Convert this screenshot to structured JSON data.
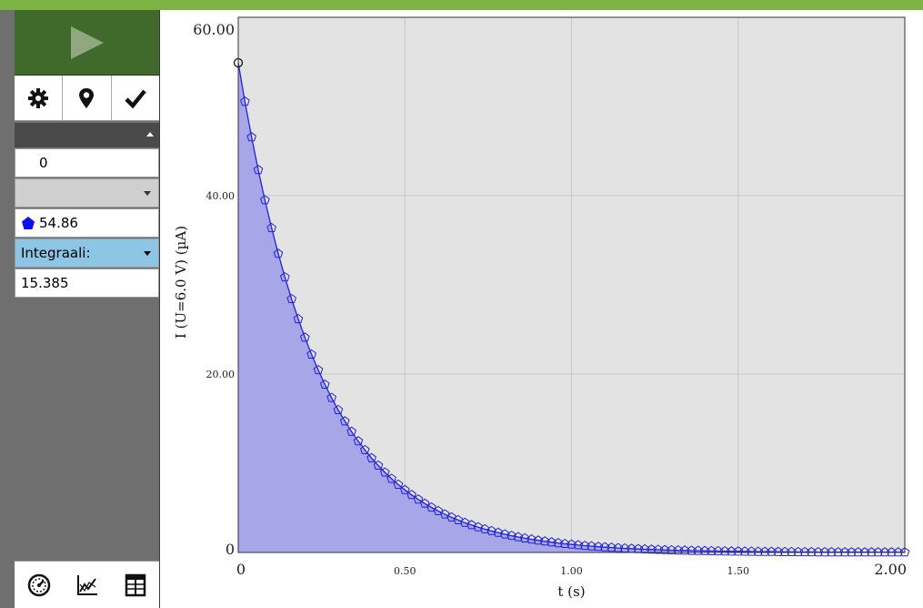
{
  "sidebar": {
    "buttons": {
      "play": "play-icon",
      "settings": "gear-icon",
      "marker": "map-pin-icon",
      "confirm": "checkmark-icon"
    },
    "panel1_value": "0",
    "panel2_value": "54.86",
    "panel3_label": "Integraali:",
    "panel3_value": "15.385",
    "bottom_buttons": [
      "meter-icon",
      "graph-icon",
      "table-icon"
    ]
  },
  "colors": {
    "accent_green": "#7cb342",
    "play_bg": "#3f6a2c",
    "series": "#2222dd",
    "fill": "#a6a6e8",
    "plot_bg": "#e3e3e3",
    "header_blue": "#8dc6e4"
  },
  "chart_data": {
    "type": "line",
    "xlabel": "t (s)",
    "ylabel": "I (U=6.0 V) (µA)",
    "xlim": [
      0,
      2.0
    ],
    "ylim": [
      0,
      60
    ],
    "x_ticks": [
      "0",
      "0.50",
      "1.00",
      "1.50",
      "2.00"
    ],
    "y_ticks": [
      "0",
      "20.00",
      "40.00",
      "60.00"
    ],
    "grid": true,
    "series": [
      {
        "x": [
          0.0,
          0.02,
          0.04,
          0.06,
          0.08,
          0.1,
          0.12,
          0.14,
          0.16,
          0.18,
          0.2,
          0.22,
          0.24,
          0.26,
          0.28,
          0.3,
          0.32,
          0.34,
          0.36,
          0.38,
          0.4,
          0.42,
          0.44,
          0.46,
          0.48,
          0.5,
          0.52,
          0.54,
          0.56,
          0.58,
          0.6,
          0.62,
          0.64,
          0.66,
          0.68,
          0.7,
          0.72,
          0.74,
          0.76,
          0.78,
          0.8,
          0.82,
          0.84,
          0.86,
          0.88,
          0.9,
          0.92,
          0.94,
          0.96,
          0.98,
          1.0,
          1.02,
          1.04,
          1.06,
          1.08,
          1.1,
          1.12,
          1.14,
          1.16,
          1.18,
          1.2,
          1.22,
          1.24,
          1.26,
          1.28,
          1.3,
          1.32,
          1.34,
          1.36,
          1.38,
          1.4,
          1.42,
          1.44,
          1.46,
          1.48,
          1.5,
          1.52,
          1.54,
          1.56,
          1.58,
          1.6,
          1.62,
          1.64,
          1.66,
          1.68,
          1.7,
          1.72,
          1.74,
          1.76,
          1.78,
          1.8,
          1.82,
          1.84,
          1.86,
          1.88,
          1.9,
          1.92,
          1.94,
          1.96,
          1.98,
          2.0
        ],
        "y": [
          54.9,
          50.56,
          46.56,
          42.89,
          39.5,
          36.38,
          33.5,
          30.86,
          28.42,
          26.17,
          24.1,
          22.2,
          20.45,
          18.83,
          17.34,
          15.97,
          14.71,
          13.55,
          12.48,
          11.49,
          10.58,
          9.75,
          8.98,
          8.27,
          7.61,
          7.01,
          6.46,
          5.95,
          5.48,
          5.05,
          4.65,
          4.28,
          3.94,
          3.63,
          3.34,
          3.08,
          2.84,
          2.61,
          2.41,
          2.22,
          2.04,
          1.88,
          1.73,
          1.59,
          1.47,
          1.35,
          1.25,
          1.15,
          1.06,
          0.97,
          0.9,
          0.83,
          0.76,
          0.7,
          0.64,
          0.59,
          0.55,
          0.5,
          0.46,
          0.43,
          0.39,
          0.36,
          0.33,
          0.31,
          0.28,
          0.26,
          0.24,
          0.22,
          0.2,
          0.19,
          0.17,
          0.16,
          0.15,
          0.14,
          0.12,
          0.12,
          0.11,
          0.1,
          0.09,
          0.08,
          0.08,
          0.07,
          0.06,
          0.06,
          0.05,
          0.05,
          0.05,
          0.04,
          0.04,
          0.04,
          0.03,
          0.03,
          0.03,
          0.03,
          0.02,
          0.02,
          0.02,
          0.02,
          0.02,
          0.02,
          0.02
        ]
      }
    ]
  }
}
